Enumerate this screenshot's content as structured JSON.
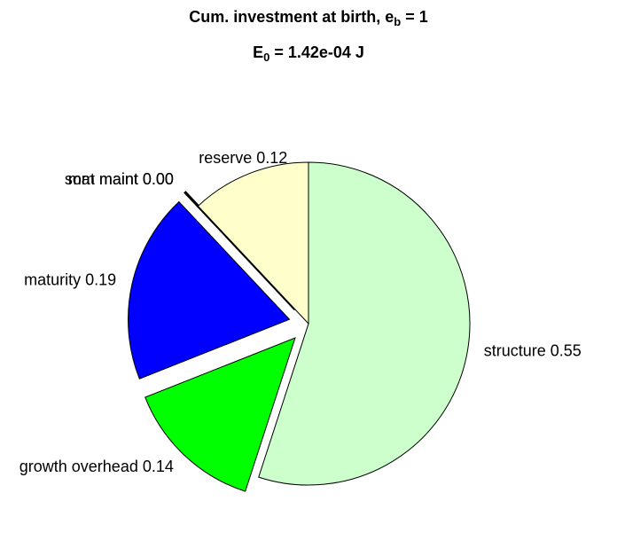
{
  "chart_data": {
    "type": "pie",
    "title": [
      "Cum. investment at birth, e",
      "b",
      " = 1"
    ],
    "subtitle": [
      "E",
      "0",
      " = 1.42e-04 J"
    ],
    "categories": [
      "structure",
      "growth overhead",
      "maturity",
      "som maint",
      "mat maint",
      "reserve"
    ],
    "values": [
      0.55,
      0.14,
      0.19,
      0.0,
      0.0,
      0.12
    ],
    "value_labels": [
      "0.55",
      "0.14",
      "0.19",
      "0.00",
      "0.00",
      "0.12"
    ],
    "colors": [
      "#ccffcc",
      "#00ff00",
      "#0000ff",
      "#ff0000",
      "#ff00ff",
      "#ffffcc"
    ],
    "explode": [
      false,
      true,
      true,
      true,
      true,
      false
    ]
  }
}
